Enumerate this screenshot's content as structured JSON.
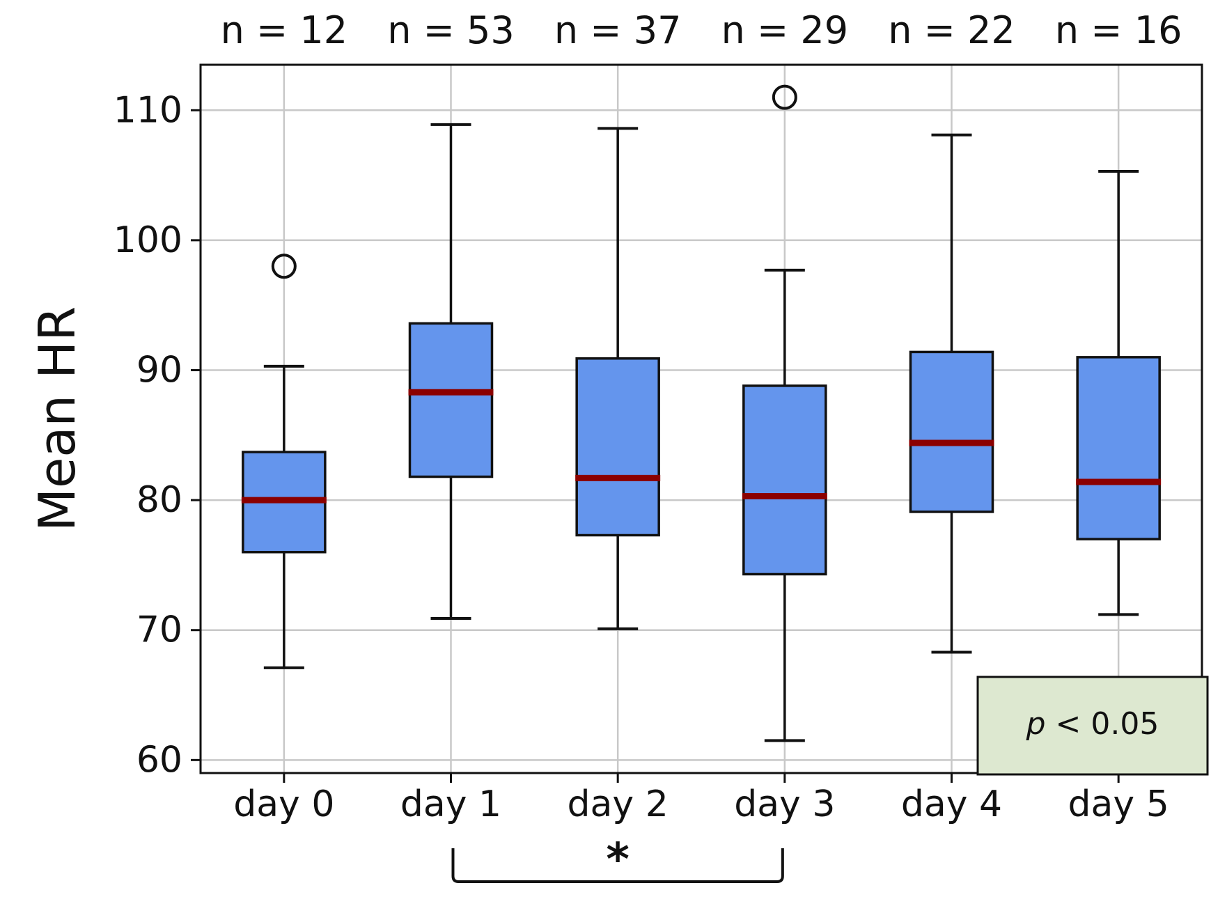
{
  "chart_data": {
    "type": "box",
    "title": "",
    "xlabel": "",
    "ylabel": "Mean HR",
    "ylim": [
      59,
      113.5
    ],
    "yticks": [
      60,
      70,
      80,
      90,
      100,
      110
    ],
    "grid": true,
    "categories": [
      "day 0",
      "day 1",
      "day 2",
      "day 3",
      "day 4",
      "day 5"
    ],
    "sample_sizes": [
      "n = 12",
      "n = 53",
      "n = 37",
      "n = 29",
      "n = 22",
      "n = 16"
    ],
    "boxes": [
      {
        "label": "day 0",
        "whisker_low": 67.1,
        "q1": 76.0,
        "median": 80.0,
        "q3": 83.7,
        "whisker_high": 90.3,
        "outliers": [
          98.0
        ]
      },
      {
        "label": "day 1",
        "whisker_low": 70.9,
        "q1": 81.8,
        "median": 88.3,
        "q3": 93.6,
        "whisker_high": 108.9,
        "outliers": []
      },
      {
        "label": "day 2",
        "whisker_low": 70.1,
        "q1": 77.3,
        "median": 81.7,
        "q3": 90.9,
        "whisker_high": 108.6,
        "outliers": []
      },
      {
        "label": "day 3",
        "whisker_low": 61.5,
        "q1": 74.3,
        "median": 80.3,
        "q3": 88.8,
        "whisker_high": 97.7,
        "outliers": [
          111.0
        ]
      },
      {
        "label": "day 4",
        "whisker_low": 68.3,
        "q1": 79.1,
        "median": 84.4,
        "q3": 91.4,
        "whisker_high": 108.1,
        "outliers": []
      },
      {
        "label": "day 5",
        "whisker_low": 71.2,
        "q1": 77.0,
        "median": 81.4,
        "q3": 91.0,
        "whisker_high": 105.3,
        "outliers": []
      }
    ],
    "significance": {
      "from": "day 1",
      "to": "day 3",
      "marker": "*"
    },
    "annotation": {
      "prefix": "p",
      "text": " < 0.05",
      "position": "bottom-right"
    },
    "colors": {
      "box_fill": "#6495ED",
      "box_edge": "#111111",
      "median": "#8B0000",
      "grid": "#c8c8c8",
      "annotation_fill": "#dde8d0"
    }
  }
}
